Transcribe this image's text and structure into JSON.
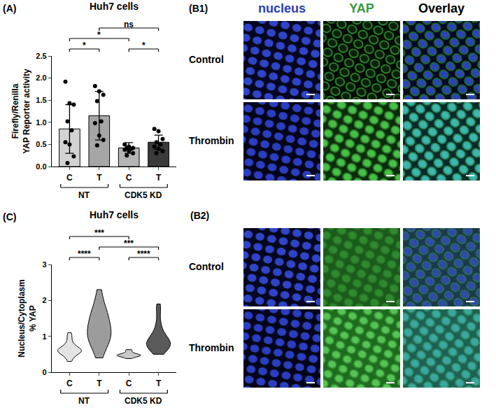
{
  "chart_data": [
    {
      "label": "(A)",
      "type": "bar",
      "title": "Huh7 cells",
      "y_label": [
        "Firefly/Renilla",
        "YAP Reporter activity"
      ],
      "categories": [
        "C",
        "T",
        "C",
        "T"
      ],
      "values": [
        0.85,
        1.15,
        0.42,
        0.55
      ],
      "errors": [
        0.55,
        0.55,
        0.12,
        0.16
      ],
      "colors": [
        "#d3d3d3",
        "#a6a6a6",
        "#b5b5b5",
        "#3a3a3a"
      ],
      "points": [
        [
          1.92,
          1.43,
          1.4,
          1.02,
          0.82,
          0.55,
          0.5,
          0.23,
          0.08
        ],
        [
          1.82,
          1.7,
          1.62,
          1.48,
          1.02,
          0.98,
          0.7,
          0.6,
          0.48
        ],
        [
          0.5,
          0.45,
          0.42,
          0.42,
          0.4,
          0.38,
          0.35,
          0.3,
          0.25
        ],
        [
          0.85,
          0.8,
          0.62,
          0.55,
          0.5,
          0.45,
          0.4,
          0.35,
          0.3
        ]
      ],
      "groups": [
        {
          "name": "NT",
          "members": [
            0,
            1
          ]
        },
        {
          "name": "CDK5 KD",
          "members": [
            2,
            3
          ]
        }
      ],
      "comparisons": [
        {
          "from": 0,
          "to": 1,
          "label": "*"
        },
        {
          "from": 2,
          "to": 3,
          "label": "*"
        },
        {
          "from": 0,
          "to": 2,
          "label": "*"
        },
        {
          "from": 1,
          "to": 3,
          "label": "ns"
        }
      ],
      "ylim": [
        0,
        2.5
      ],
      "yticks": [
        {
          "value": 0,
          "label": "0.0"
        },
        {
          "value": 0.5,
          "label": "0.5"
        },
        {
          "value": 1,
          "label": "1.0"
        },
        {
          "value": 1.5,
          "label": "1.5"
        },
        {
          "value": 2,
          "label": "2.0"
        },
        {
          "value": 2.5,
          "label": "2.5"
        }
      ]
    },
    {
      "label": "(C)",
      "type": "violin",
      "title": "Huh7 cells",
      "y_label": [
        "Nucleus/Cytoplasm",
        "% YAP"
      ],
      "categories": [
        "C",
        "T",
        "C",
        "T"
      ],
      "samples": [
        [
          0.3,
          0.4,
          0.45,
          0.5,
          0.52,
          0.55,
          0.57,
          0.58,
          0.6,
          0.6,
          0.62,
          0.63,
          0.65,
          0.68,
          0.7,
          0.75,
          0.8,
          0.9,
          1.0,
          1.1
        ],
        [
          0.4,
          0.6,
          0.75,
          0.85,
          0.9,
          0.95,
          1.0,
          1.05,
          1.1,
          1.15,
          1.2,
          1.3,
          1.4,
          1.5,
          1.55,
          1.6,
          1.7,
          1.8,
          2.0,
          2.3
        ],
        [
          0.38,
          0.42,
          0.44,
          0.45,
          0.46,
          0.47,
          0.47,
          0.48,
          0.49,
          0.5,
          0.52,
          0.55,
          0.6,
          0.63
        ],
        [
          0.5,
          0.6,
          0.65,
          0.7,
          0.72,
          0.75,
          0.78,
          0.8,
          0.82,
          0.85,
          0.9,
          0.95,
          1.0,
          1.1,
          1.2,
          1.4,
          1.7,
          1.9
        ]
      ],
      "colors": [
        "#e3e3e3",
        "#9c9c9c",
        "#c8c8c8",
        "#5a5a5a"
      ],
      "groups": [
        {
          "name": "NT",
          "members": [
            0,
            1
          ]
        },
        {
          "name": "CDK5 KD",
          "members": [
            2,
            3
          ]
        }
      ],
      "comparisons": [
        {
          "from": 0,
          "to": 1,
          "label": "****"
        },
        {
          "from": 2,
          "to": 3,
          "label": "****"
        },
        {
          "from": 1,
          "to": 3,
          "label": "***"
        },
        {
          "from": 0,
          "to": 2,
          "label": "***"
        }
      ],
      "ylim": [
        0,
        3
      ],
      "yticks": [
        0,
        1,
        2,
        3
      ]
    }
  ],
  "image_panels": [
    {
      "label": "(B1)",
      "columns": [
        "nucleus",
        "YAP",
        "Overlay"
      ],
      "rows": [
        "Control",
        "Thrombin"
      ]
    },
    {
      "label": "(B2)",
      "rows": [
        "Control",
        "Thrombin"
      ]
    }
  ]
}
